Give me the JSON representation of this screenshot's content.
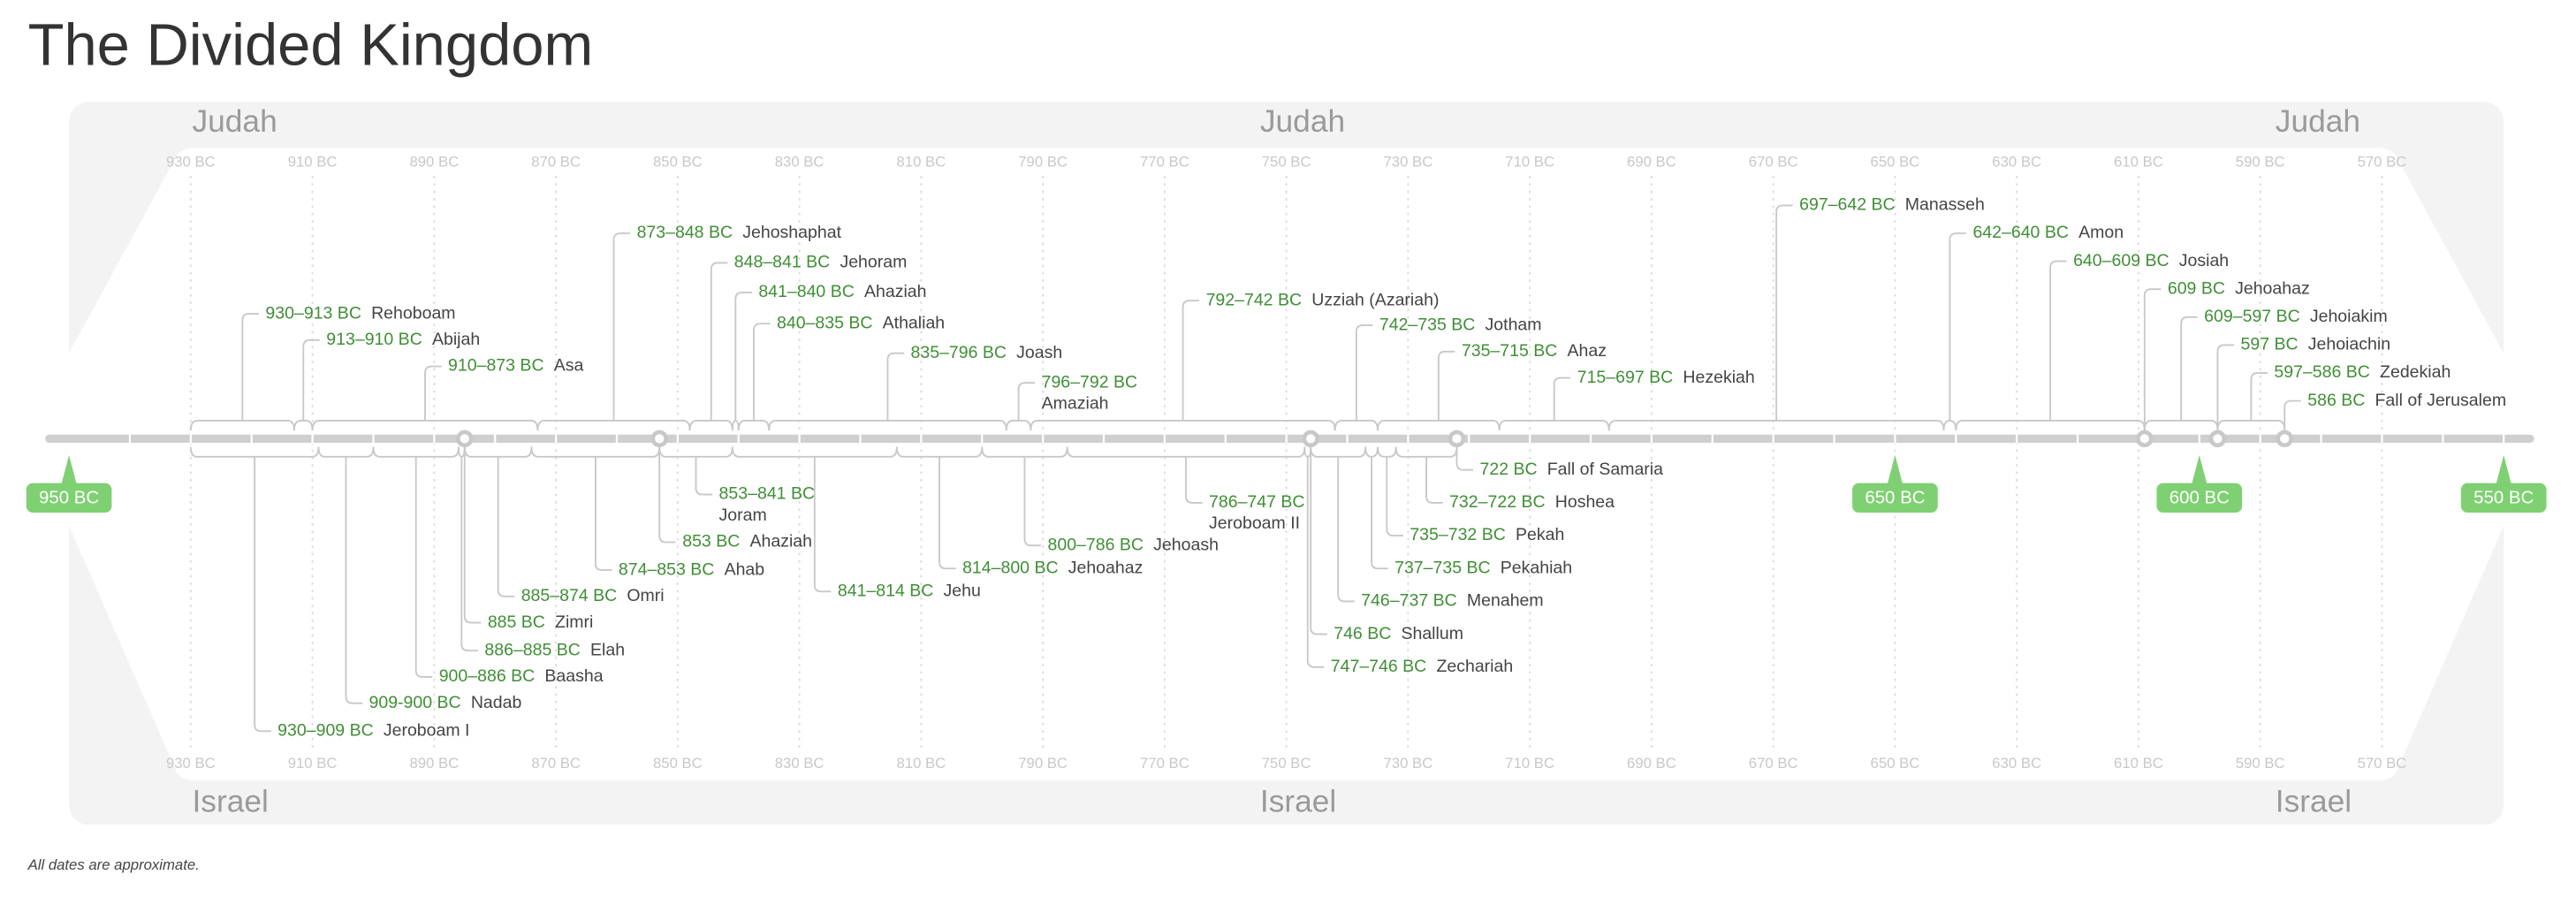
{
  "title": "The Divided Kingdom",
  "kingdoms": {
    "top": "Judah",
    "bottom": "Israel"
  },
  "ticks": [
    "930 BC",
    "910 BC",
    "890 BC",
    "870 BC",
    "850 BC",
    "830 BC",
    "810 BC",
    "790 BC",
    "770 BC",
    "750 BC",
    "730 BC",
    "710 BC",
    "690 BC",
    "670 BC",
    "650 BC",
    "630 BC",
    "610 BC",
    "590 BC",
    "570 BC"
  ],
  "milestones": [
    "950 BC",
    "650 BC",
    "600 BC",
    "550 BC"
  ],
  "judah": [
    {
      "dates": "930–913 BC",
      "name": "Rehoboam"
    },
    {
      "dates": "913–910 BC",
      "name": "Abijah"
    },
    {
      "dates": "910–873 BC",
      "name": "Asa"
    },
    {
      "dates": "873–848 BC",
      "name": "Jehoshaphat"
    },
    {
      "dates": "848–841 BC",
      "name": "Jehoram"
    },
    {
      "dates": "841–840 BC",
      "name": "Ahaziah"
    },
    {
      "dates": "840–835 BC",
      "name": "Athaliah"
    },
    {
      "dates": "835–796 BC",
      "name": "Joash"
    },
    {
      "dates": "796–792 BC",
      "name": "Amaziah"
    },
    {
      "dates": "792–742 BC",
      "name": "Uzziah (Azariah)"
    },
    {
      "dates": "742–735 BC",
      "name": "Jotham"
    },
    {
      "dates": "735–715 BC",
      "name": "Ahaz"
    },
    {
      "dates": "715–697 BC",
      "name": "Hezekiah"
    },
    {
      "dates": "697–642 BC",
      "name": "Manasseh"
    },
    {
      "dates": "642–640 BC",
      "name": "Amon"
    },
    {
      "dates": "640–609 BC",
      "name": "Josiah"
    },
    {
      "dates": "609 BC",
      "name": "Jehoahaz"
    },
    {
      "dates": "609–597 BC",
      "name": "Jehoiakim"
    },
    {
      "dates": "597 BC",
      "name": "Jehoiachin"
    },
    {
      "dates": "597–586 BC",
      "name": "Zedekiah"
    },
    {
      "dates": "586 BC",
      "name": "Fall of Jerusalem"
    }
  ],
  "israel": [
    {
      "dates": "930–909 BC",
      "name": "Jeroboam I"
    },
    {
      "dates": "909-900 BC",
      "name": "Nadab"
    },
    {
      "dates": "900–886 BC",
      "name": "Baasha"
    },
    {
      "dates": "886–885 BC",
      "name": "Elah"
    },
    {
      "dates": "885 BC",
      "name": "Zimri"
    },
    {
      "dates": "885–874 BC",
      "name": "Omri"
    },
    {
      "dates": "874–853 BC",
      "name": "Ahab"
    },
    {
      "dates": "853 BC",
      "name": "Ahaziah"
    },
    {
      "dates": "853–841 BC",
      "name": "Joram"
    },
    {
      "dates": "841–814 BC",
      "name": "Jehu"
    },
    {
      "dates": "814–800 BC",
      "name": "Jehoahaz"
    },
    {
      "dates": "800–786 BC",
      "name": "Jehoash"
    },
    {
      "dates": "786–747 BC",
      "name": "Jeroboam II"
    },
    {
      "dates": "747–746 BC",
      "name": "Zechariah"
    },
    {
      "dates": "746 BC",
      "name": "Shallum"
    },
    {
      "dates": "746–737 BC",
      "name": "Menahem"
    },
    {
      "dates": "737–735 BC",
      "name": "Pekahiah"
    },
    {
      "dates": "735–732 BC",
      "name": "Pekah"
    },
    {
      "dates": "732–722 BC",
      "name": "Hoshea"
    },
    {
      "dates": "722 BC",
      "name": "Fall of Samaria"
    }
  ],
  "footnote": "All dates are approximate."
}
